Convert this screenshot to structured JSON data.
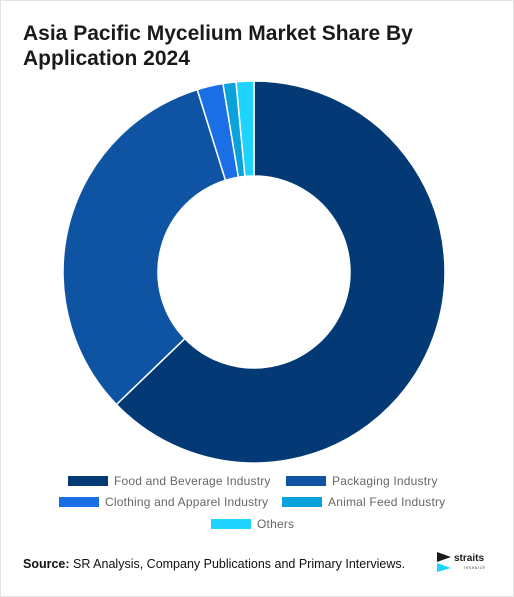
{
  "title": "Asia Pacific Mycelium Market Share By Application 2024",
  "source": {
    "prefix": "Source:",
    "text": "SR Analysis, Company Publications and Primary Interviews."
  },
  "logo": {
    "word": "straits",
    "sub": "research"
  },
  "chart_data": {
    "type": "pie",
    "style": "donut",
    "title": "Asia Pacific Mycelium Market Share By Application 2024",
    "unit": "%",
    "categories": [
      "Food and Beverage Industry",
      "Packaging Industry",
      "Clothing and Apparel Industry",
      "Animal Feed Industry",
      "Others"
    ],
    "values": [
      62.8,
      32.4,
      2.2,
      1.1,
      1.5
    ],
    "colors": [
      "#033a76",
      "#0f54a2",
      "#1b6fe6",
      "#0aa2da",
      "#1fd3ff"
    ],
    "legend_position": "bottom"
  }
}
